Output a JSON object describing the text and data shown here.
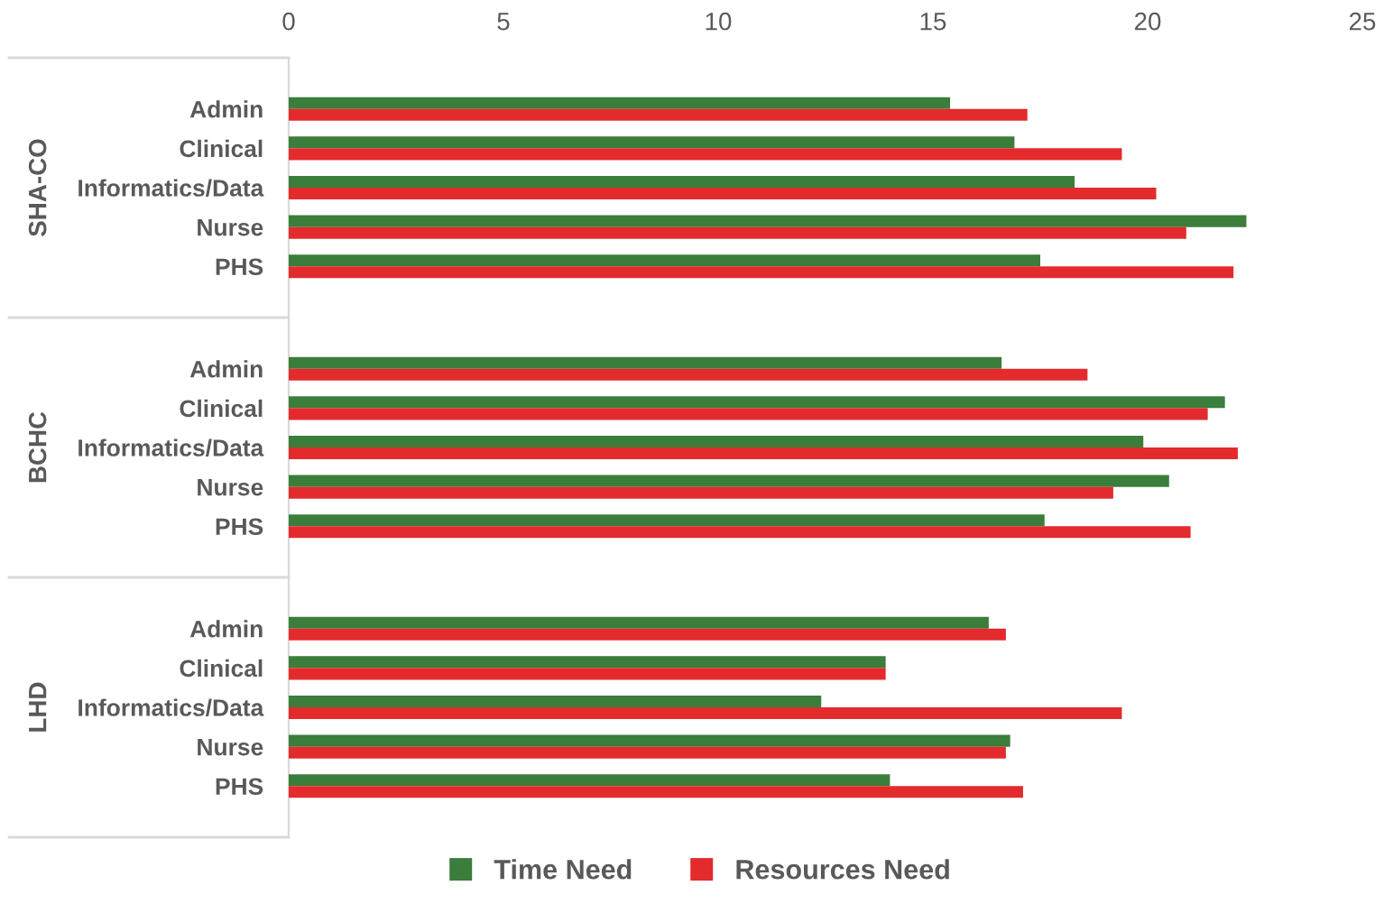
{
  "chart_data": {
    "type": "bar",
    "orientation": "horizontal",
    "categories": [
      "Admin",
      "Clinical",
      "Informatics/Data",
      "Nurse",
      "PHS",
      "Admin",
      "Clinical",
      "Informatics/Data",
      "Nurse",
      "PHS",
      "Admin",
      "Clinical",
      "Informatics/Data",
      "Nurse",
      "PHS"
    ],
    "annotations": [
      "SHA-CO",
      "BCHC",
      "LHD"
    ],
    "series": [
      {
        "name": "Time Need",
        "color": "#3b7d3a",
        "values": [
          15.4,
          16.9,
          18.3,
          22.3,
          17.5,
          16.6,
          21.8,
          19.9,
          20.5,
          17.6,
          16.3,
          13.9,
          12.4,
          16.8,
          14.0
        ]
      },
      {
        "name": "Resources Need",
        "color": "#e32b2d",
        "values": [
          17.2,
          19.4,
          20.2,
          20.9,
          22.0,
          18.6,
          21.4,
          22.1,
          19.2,
          21.0,
          16.7,
          13.9,
          19.4,
          16.7,
          17.1
        ]
      }
    ],
    "xlim": [
      0,
      25
    ],
    "xticks": [
      0,
      5,
      10,
      15,
      20,
      25
    ],
    "legend": "bottom"
  }
}
